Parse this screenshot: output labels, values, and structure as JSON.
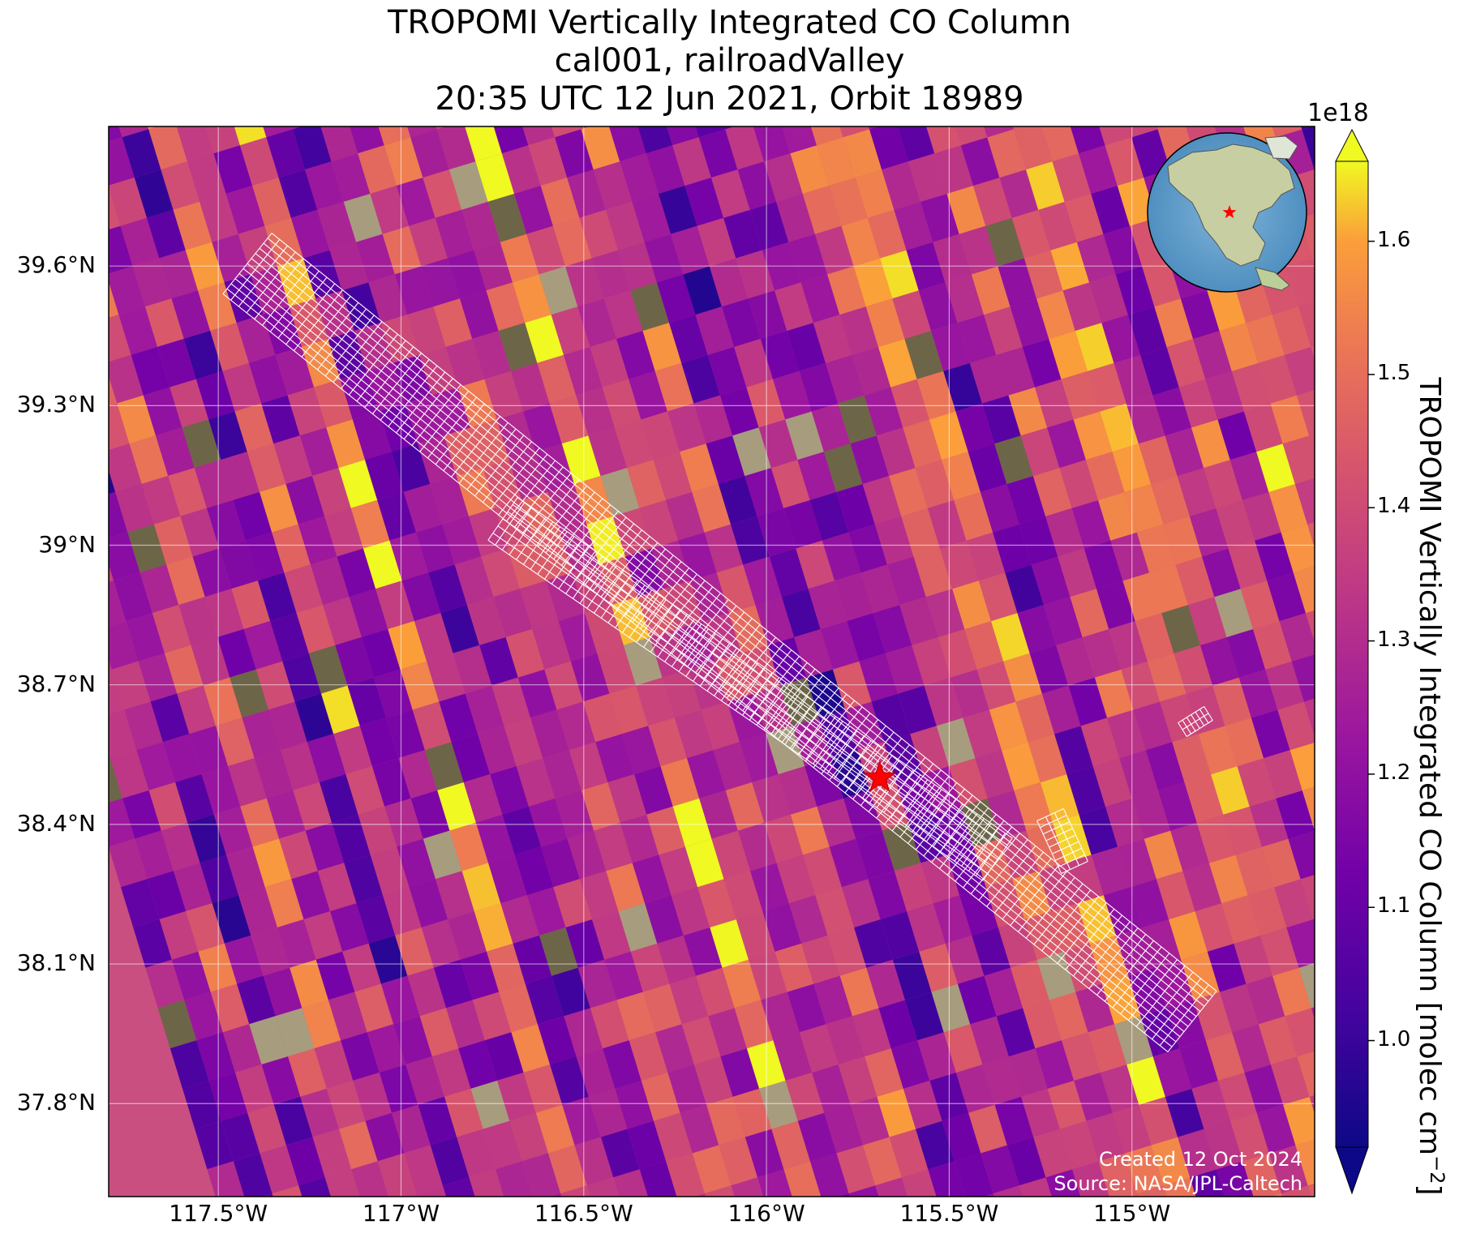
{
  "title": {
    "line1": "TROPOMI Vertically Integrated CO Column",
    "line2": "cal001, railroadValley",
    "line3": "20:35 UTC 12 Jun 2021, Orbit 18989"
  },
  "map": {
    "region": "Railroad Valley, Nevada",
    "lon_range": [
      -117.8,
      -114.5
    ],
    "lat_range": [
      37.6,
      39.9
    ],
    "lat_ticks": [
      "39.6°N",
      "39.3°N",
      "39°N",
      "38.7°N",
      "38.4°N",
      "38.1°N",
      "37.8°N"
    ],
    "lat_values": [
      39.6,
      39.3,
      39.0,
      38.7,
      38.4,
      38.1,
      37.8
    ],
    "lon_ticks": [
      "117.5°W",
      "117°W",
      "116.5°W",
      "116°W",
      "115.5°W",
      "115°W"
    ],
    "lon_values": [
      -117.5,
      -117.0,
      -116.5,
      -116.0,
      -115.5,
      -115.0
    ],
    "gridlines": true,
    "site_marker": {
      "symbol": "star-icon",
      "color": "#ff0000",
      "lon": -115.69,
      "lat": 38.5
    },
    "footprint_outline_color": "#ffffff",
    "inset_globe": {
      "placement": "top-right",
      "marker_color": "#ff0000",
      "region": "North America"
    }
  },
  "colorbar": {
    "label": "TROPOMI Vertically Integrated CO Column [molec cm",
    "label_exponent": "−2",
    "label_close": "]",
    "exponent": "1e18",
    "ticks": [
      "1.0",
      "1.1",
      "1.2",
      "1.3",
      "1.4",
      "1.5",
      "1.6"
    ],
    "tick_values": [
      1.0,
      1.1,
      1.2,
      1.3,
      1.4,
      1.5,
      1.6
    ],
    "range": [
      0.92,
      1.66
    ],
    "colormap": "plasma",
    "extend": "both"
  },
  "credits": {
    "created": "Created 12 Oct 2024",
    "source": "Source: NASA/JPL-Caltech"
  }
}
